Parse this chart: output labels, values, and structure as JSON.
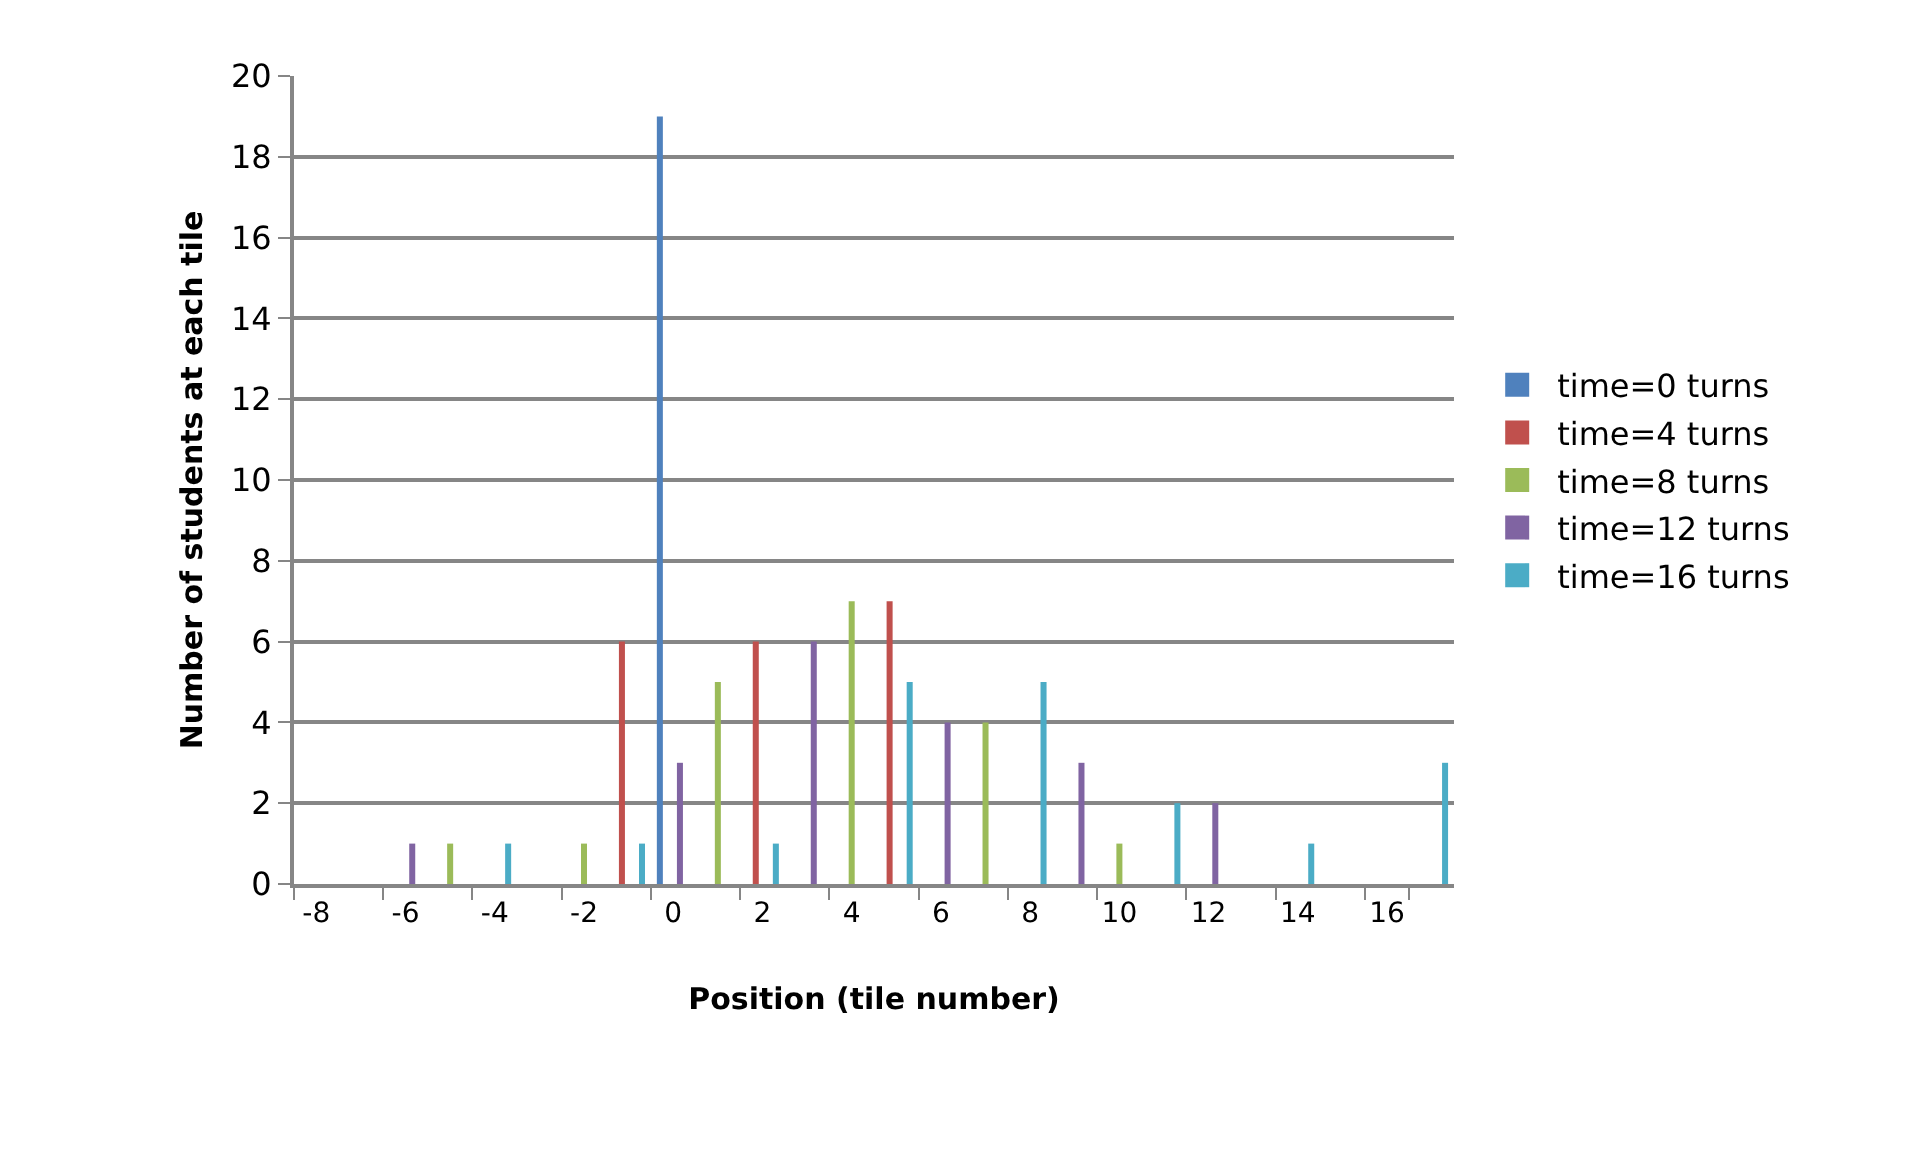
{
  "chart_data": {
    "type": "bar",
    "xlabel": "Position (tile number)",
    "ylabel": "Number of students at each tile",
    "categories": [
      "-8",
      null,
      "-6",
      null,
      "-4",
      null,
      "-2",
      null,
      "0",
      null,
      "2",
      null,
      "4",
      null,
      "6",
      null,
      "8",
      null,
      "10",
      null,
      "12",
      null,
      "14",
      null,
      "16",
      null
    ],
    "series": [
      {
        "name": "time=0 turns",
        "color": "#4f81bd",
        "values": [
          null,
          null,
          null,
          null,
          null,
          null,
          null,
          null,
          19,
          null,
          null,
          null,
          null,
          null,
          null,
          null,
          null,
          null,
          null,
          null,
          null,
          null,
          null,
          null,
          null,
          null
        ]
      },
      {
        "name": "time=4 turns",
        "color": "#c0504d",
        "values": [
          null,
          null,
          null,
          null,
          null,
          null,
          null,
          6,
          null,
          null,
          6,
          null,
          null,
          7,
          null,
          null,
          null,
          null,
          null,
          null,
          null,
          null,
          null,
          null,
          null,
          null
        ]
      },
      {
        "name": "time=8 turns",
        "color": "#9bbb59",
        "values": [
          null,
          null,
          null,
          1,
          null,
          null,
          1,
          null,
          null,
          5,
          null,
          null,
          7,
          null,
          null,
          4,
          null,
          null,
          1,
          null,
          null,
          null,
          null,
          null,
          null,
          null
        ]
      },
      {
        "name": "time=12 turns",
        "color": "#8064a2",
        "values": [
          null,
          null,
          1,
          null,
          null,
          null,
          null,
          null,
          3,
          null,
          null,
          6,
          null,
          null,
          4,
          null,
          null,
          3,
          null,
          null,
          2,
          null,
          null,
          null,
          null,
          null
        ]
      },
      {
        "name": "time=16 turns",
        "color": "#4bacc6",
        "values": [
          null,
          null,
          null,
          null,
          1,
          null,
          null,
          1,
          null,
          null,
          1,
          null,
          null,
          5,
          null,
          null,
          5,
          null,
          null,
          2,
          null,
          null,
          1,
          null,
          null,
          3
        ]
      }
    ],
    "ylim": [
      0,
      20
    ],
    "yticks": [
      0,
      2,
      4,
      6,
      8,
      10,
      12,
      14,
      16,
      18,
      20
    ],
    "grid": "y",
    "legend": "right"
  }
}
